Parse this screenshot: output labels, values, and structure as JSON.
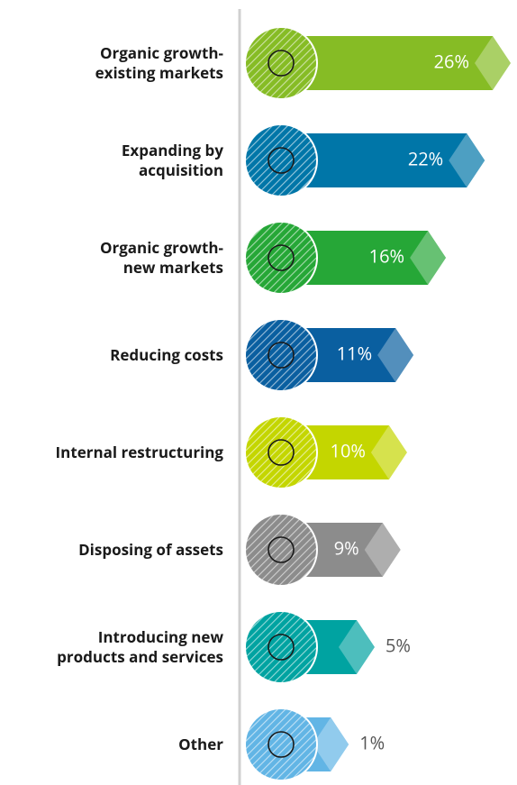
{
  "chart_data": {
    "type": "bar",
    "orientation": "horizontal",
    "categories": [
      "Organic growth-\nexisting markets",
      "Expanding by\nacquisition",
      "Organic growth-\nnew markets",
      "Reducing costs",
      "Internal restructuring",
      "Disposing of assets",
      "Introducing new\nproducts and services",
      "Other"
    ],
    "values": [
      26,
      22,
      16,
      11,
      10,
      9,
      5,
      1
    ],
    "value_labels": [
      "26%",
      "22%",
      "16%",
      "11%",
      "10%",
      "9%",
      "5%",
      "1%"
    ],
    "colors": [
      "#86bc25",
      "#0076a8",
      "#26a737",
      "#0a5fa0",
      "#c4d600",
      "#8c8c8c",
      "#00a3a1",
      "#62b5e5"
    ]
  }
}
